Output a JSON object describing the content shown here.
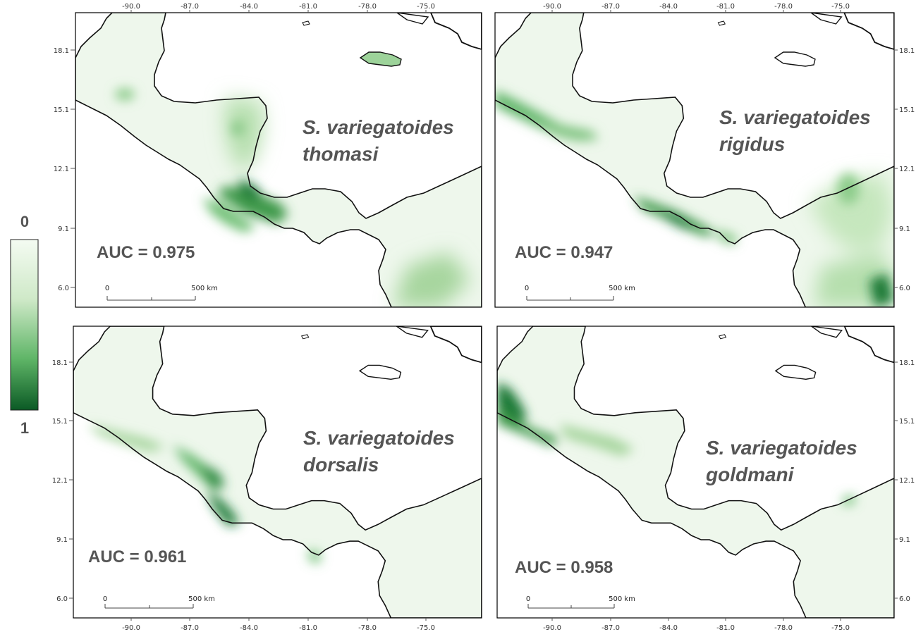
{
  "legend": {
    "top_label": "0",
    "bottom_label": "1",
    "color_low": "#f4fbf2",
    "color_high": "#0b5a25"
  },
  "scale_bar": {
    "start_label": "0",
    "end_label": "500 km"
  },
  "longitude_ticks": [
    "-90.0",
    "-87.0",
    "-84.0",
    "-81.0",
    "-78.0",
    "-75.0"
  ],
  "latitude_ticks": [
    "18.1",
    "15.1",
    "12.1",
    "9.1",
    "6.0"
  ],
  "panels": [
    {
      "id": "thomasi",
      "species_line1": "S. variegatoides",
      "species_line2": "thomasi",
      "auc": "AUC = 0.975"
    },
    {
      "id": "rigidus",
      "species_line1": "S. variegatoides",
      "species_line2": "rigidus",
      "auc": "AUC = 0.947"
    },
    {
      "id": "dorsalis",
      "species_line1": "S. variegatoides",
      "species_line2": "dorsalis",
      "auc": "AUC = 0.961"
    },
    {
      "id": "goldmani",
      "species_line1": "S. variegatoides",
      "species_line2": "goldmani",
      "auc": "AUC = 0.958"
    }
  ],
  "colors": {
    "land_base": "#eef7ec",
    "water": "#ffffff",
    "coast": "#111111",
    "light_green": "#b9e0b3",
    "mid_green": "#5fb567",
    "dark_green": "#1f7a38"
  }
}
